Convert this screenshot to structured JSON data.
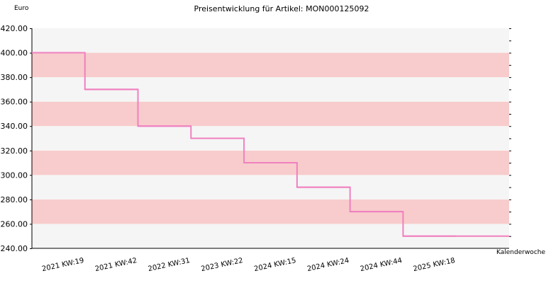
{
  "chart_data": {
    "type": "line",
    "step": true,
    "title": "Preisentwicklung für Artikel: MON000125092",
    "ylabel": "Euro",
    "xlabel": "Kalenderwoche",
    "ylim": [
      240,
      420
    ],
    "y_ticks": [
      "240.00",
      "260.00",
      "280.00",
      "300.00",
      "320.00",
      "340.00",
      "360.00",
      "380.00",
      "400.00",
      "420.00"
    ],
    "categories": [
      "2021 KW:19",
      "2021 KW:42",
      "2022 KW:31",
      "2023 KW:22",
      "2024 KW:15",
      "2024 KW:24",
      "2024 KW:44",
      "2025 KW:18"
    ],
    "series": [
      {
        "values": [
          400,
          370,
          340,
          330,
          310,
          290,
          270,
          250
        ]
      }
    ],
    "colors": {
      "line": "#f080c0",
      "band_dark": "#f8cccc",
      "band_light": "#f5f5f5",
      "axis": "#000000"
    }
  }
}
